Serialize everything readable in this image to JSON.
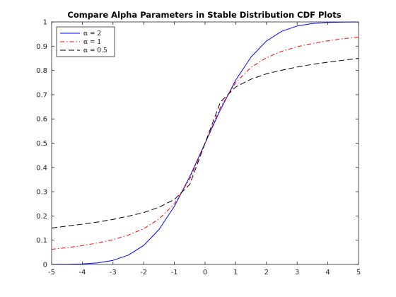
{
  "chart_data": {
    "type": "line",
    "title": "Compare Alpha Parameters in Stable Distribution CDF Plots",
    "xlabel": "",
    "ylabel": "",
    "xlim": [
      -5,
      5
    ],
    "ylim": [
      0,
      1
    ],
    "xticks": [
      -5,
      -4,
      -3,
      -2,
      -1,
      0,
      1,
      2,
      3,
      4,
      5
    ],
    "yticks": [
      0,
      0.1,
      0.2,
      0.3,
      0.4,
      0.5,
      0.6,
      0.7,
      0.8,
      0.9,
      1
    ],
    "grid": false,
    "legend_position": "top-left",
    "series": [
      {
        "name": "α = 2",
        "color": "#0000ff",
        "dash": "solid",
        "x": [
          -5,
          -4.5,
          -4,
          -3.5,
          -3,
          -2.5,
          -2,
          -1.5,
          -1,
          -0.5,
          0,
          0.5,
          1,
          1.5,
          2,
          2.5,
          3,
          3.5,
          4,
          4.5,
          5
        ],
        "y": [
          0.0002,
          0.0007,
          0.0023,
          0.0067,
          0.0169,
          0.0385,
          0.0786,
          0.1444,
          0.2398,
          0.3618,
          0.5,
          0.6382,
          0.7602,
          0.8556,
          0.9214,
          0.9615,
          0.9831,
          0.9933,
          0.9977,
          0.9993,
          0.9998
        ]
      },
      {
        "name": "α = 1",
        "color": "#ff0000",
        "dash": "dash-dot",
        "x": [
          -5,
          -4.5,
          -4,
          -3.5,
          -3,
          -2.5,
          -2,
          -1.5,
          -1,
          -0.5,
          0,
          0.5,
          1,
          1.5,
          2,
          2.5,
          3,
          3.5,
          4,
          4.5,
          5
        ],
        "y": [
          0.0628,
          0.069,
          0.078,
          0.0886,
          0.1024,
          0.1211,
          0.1476,
          0.1872,
          0.25,
          0.3524,
          0.5,
          0.6476,
          0.75,
          0.8128,
          0.8524,
          0.8789,
          0.8976,
          0.9114,
          0.922,
          0.931,
          0.9372
        ]
      },
      {
        "name": "α = 0.5",
        "color": "#000000",
        "dash": "dashed",
        "x": [
          -5,
          -4.5,
          -4,
          -3.5,
          -3,
          -2.5,
          -2,
          -1.5,
          -1,
          -0.5,
          0,
          0.5,
          1,
          1.5,
          2,
          2.5,
          3,
          3.5,
          4,
          4.5,
          5
        ],
        "y": [
          0.15,
          0.158,
          0.166,
          0.175,
          0.186,
          0.199,
          0.214,
          0.236,
          0.268,
          0.33,
          0.5,
          0.67,
          0.732,
          0.764,
          0.786,
          0.801,
          0.814,
          0.825,
          0.834,
          0.842,
          0.85
        ]
      }
    ]
  }
}
